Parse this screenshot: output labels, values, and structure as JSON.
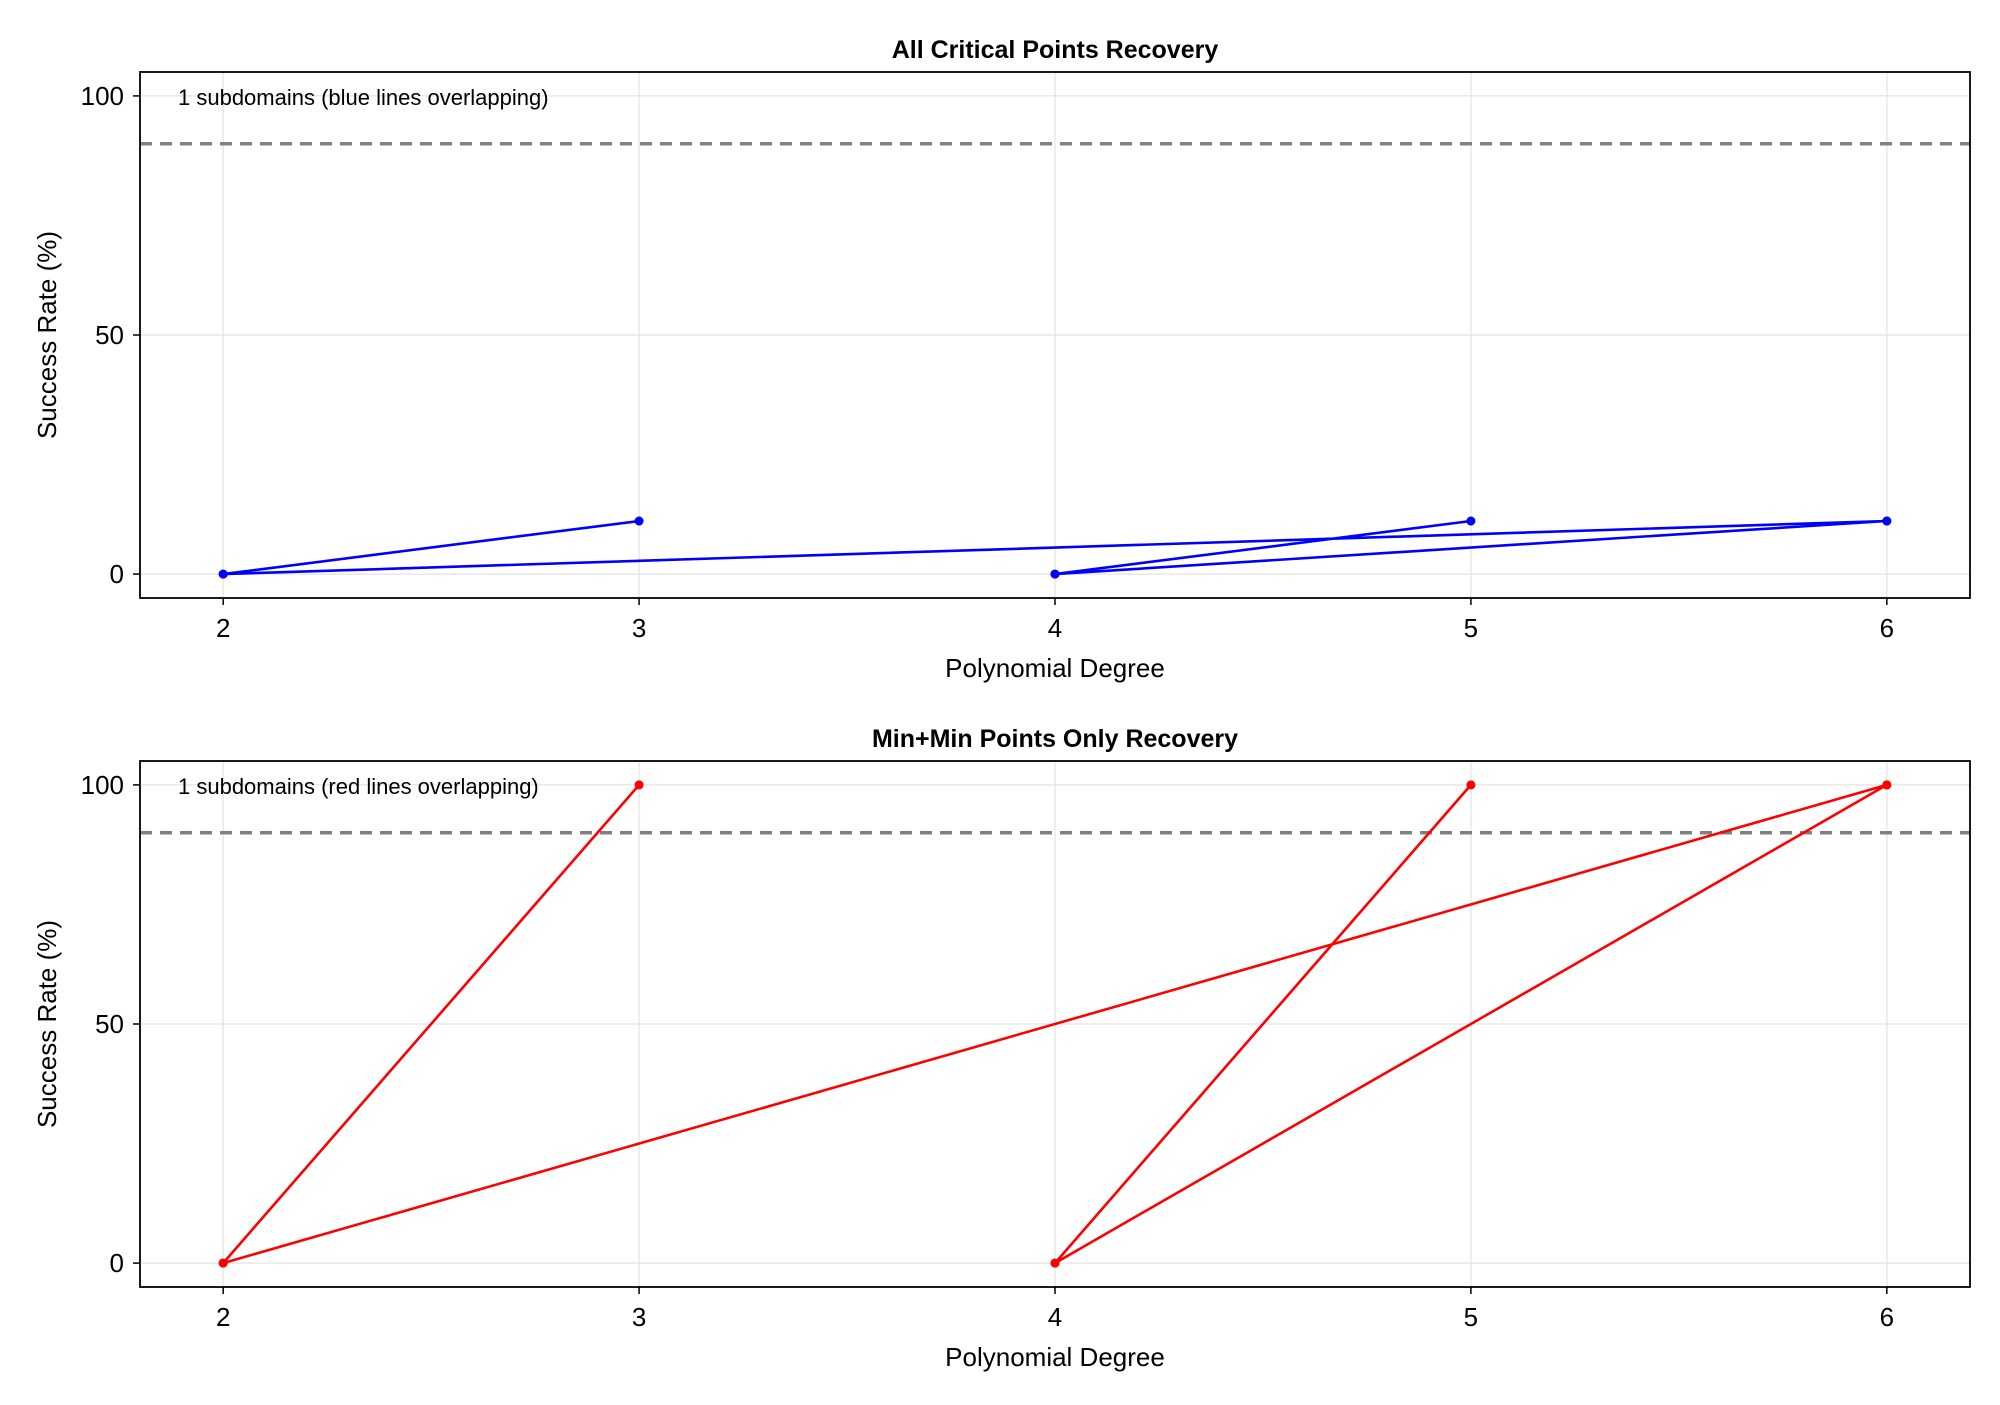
{
  "chart_data": [
    {
      "type": "line",
      "title": "All Critical Points Recovery",
      "xlabel": "Polynomial Degree",
      "ylabel": "Success Rate (%)",
      "annotation": "1 subdomains (blue lines overlapping)",
      "xlim": [
        1.8,
        6.2
      ],
      "ylim": [
        -5,
        105
      ],
      "x_ticks": [
        2,
        3,
        4,
        5,
        6
      ],
      "y_ticks": [
        0,
        50,
        100
      ],
      "grid": true,
      "threshold": 90,
      "threshold_color": "#808080",
      "series": [
        {
          "color": "#0000ff",
          "x": [
            2,
            3,
            2,
            6,
            4,
            5,
            4,
            6
          ],
          "y": [
            0,
            11.1,
            0,
            11.1,
            0,
            11.1,
            0,
            11.1
          ]
        }
      ]
    },
    {
      "type": "line",
      "title": "Min+Min Points Only Recovery",
      "xlabel": "Polynomial Degree",
      "ylabel": "Success Rate (%)",
      "annotation": "1 subdomains (red lines overlapping)",
      "xlim": [
        1.8,
        6.2
      ],
      "ylim": [
        -5,
        105
      ],
      "x_ticks": [
        2,
        3,
        4,
        5,
        6
      ],
      "y_ticks": [
        0,
        50,
        100
      ],
      "grid": true,
      "threshold": 90,
      "threshold_color": "#808080",
      "series": [
        {
          "color": "#ff0000",
          "x": [
            2,
            3,
            2,
            6,
            4,
            5,
            4,
            6
          ],
          "y": [
            0,
            100,
            0,
            100,
            0,
            100,
            0,
            100
          ]
        }
      ]
    }
  ]
}
